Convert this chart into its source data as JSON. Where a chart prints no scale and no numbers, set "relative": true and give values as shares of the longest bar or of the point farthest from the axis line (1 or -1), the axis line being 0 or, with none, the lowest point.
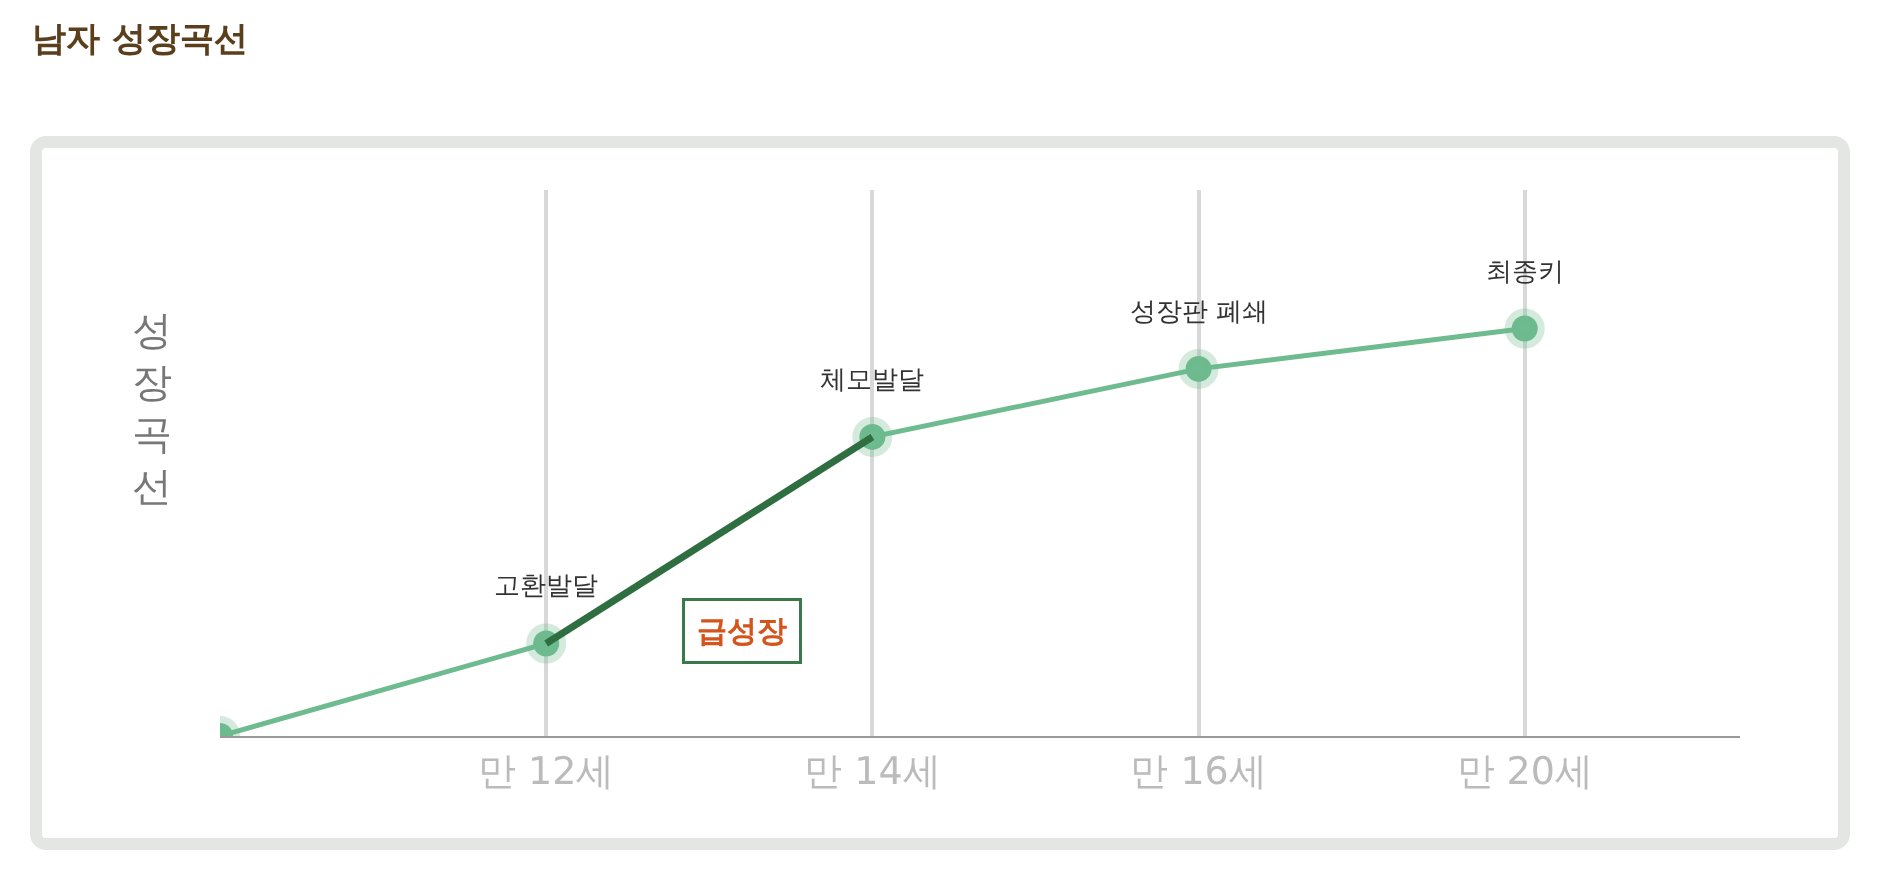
{
  "chart_data": {
    "type": "line",
    "title": "남자 성장곡선",
    "ylabel": "성장곡선",
    "relative": true,
    "categories": [
      null,
      "만 12세",
      "만 14세",
      "만 16세",
      "만 20세"
    ],
    "series": [
      {
        "color": "#6dbb8f",
        "values": [
          0,
          0.227,
          0.734,
          0.901,
          1
        ]
      },
      {
        "color": "#2f6e40",
        "values": [
          null,
          0.227,
          0.734,
          null,
          null
        ],
        "marker": "none"
      }
    ],
    "annotations": [
      {
        "text": "고환발달",
        "x": "만 12세",
        "y": 0.227
      },
      {
        "text": "체모발달",
        "x": "만 14세",
        "y": 0.734
      },
      {
        "text": "성장판 폐쇄",
        "x": "만 16세",
        "y": 0.901
      },
      {
        "text": "최종키",
        "x": "만 20세",
        "y": 1
      },
      "급성장"
    ],
    "grid": "x",
    "marker": "circle",
    "line_style": "solid"
  }
}
